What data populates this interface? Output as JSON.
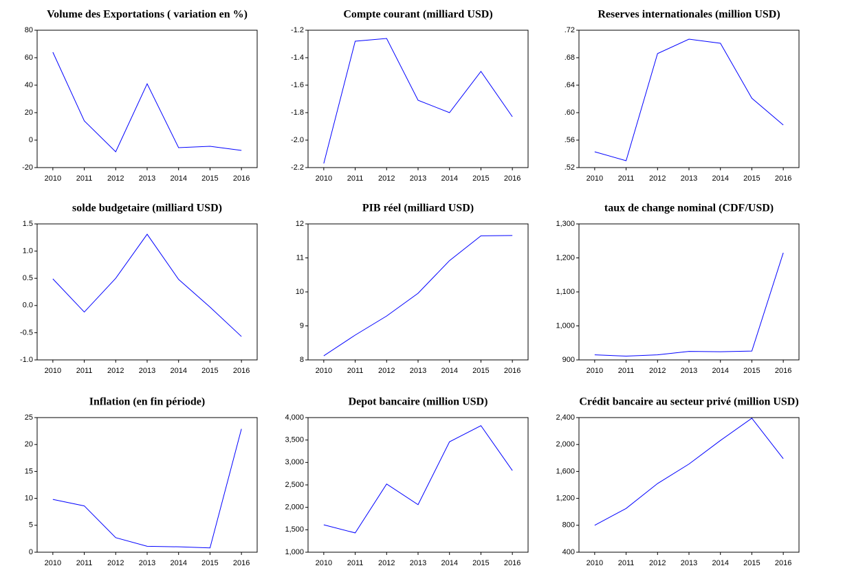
{
  "chart_data": [
    {
      "type": "line",
      "title": "Volume des Exportations ( variation en %)",
      "categories": [
        "2010",
        "2011",
        "2012",
        "2013",
        "2014",
        "2015",
        "2016"
      ],
      "values": [
        64,
        14,
        -8.5,
        41,
        -5.5,
        -4.5,
        -7.5
      ],
      "color": "#0000ff",
      "ylim": [
        -20,
        80
      ],
      "yticks": [
        -20,
        0,
        20,
        40,
        60,
        80
      ]
    },
    {
      "type": "line",
      "title": "Compte courant (milliard USD)",
      "categories": [
        "2010",
        "2011",
        "2012",
        "2013",
        "2014",
        "2015",
        "2016"
      ],
      "values": [
        -2.17,
        -1.28,
        -1.26,
        -1.71,
        -1.8,
        -1.5,
        -1.83
      ],
      "color": "#0000ff",
      "ylim": [
        -2.2,
        -1.2
      ],
      "yticks": [
        -2.2,
        {
          "value": -2,
          "label": "-2.0"
        },
        -1.8,
        -1.6,
        -1.4,
        -1.2
      ]
    },
    {
      "type": "line",
      "title": "Reserves internationales  (million USD)",
      "categories": [
        "2010",
        "2011",
        "2012",
        "2013",
        "2014",
        "2015",
        "2016"
      ],
      "values": [
        0.543,
        0.53,
        0.686,
        0.707,
        0.701,
        0.621,
        0.582
      ],
      "color": "#0000ff",
      "ylim": [
        0.52,
        0.72
      ],
      "yticks": [
        {
          "value": 0.52,
          "label": ".52"
        },
        {
          "value": 0.56,
          "label": ".56"
        },
        {
          "value": 0.6,
          "label": ".60"
        },
        {
          "value": 0.64,
          "label": ".64"
        },
        {
          "value": 0.68,
          "label": ".68"
        },
        {
          "value": 0.72,
          "label": ".72"
        }
      ]
    },
    {
      "type": "line",
      "title": "solde budgetaire  (milliard USD)",
      "categories": [
        "2010",
        "2011",
        "2012",
        "2013",
        "2014",
        "2015",
        "2016"
      ],
      "values": [
        0.49,
        -0.12,
        0.5,
        1.31,
        0.48,
        -0.03,
        -0.57
      ],
      "color": "#0000ff",
      "ylim": [
        -1,
        1.5
      ],
      "yticks": [
        {
          "value": -1,
          "label": "-1.0"
        },
        -0.5,
        {
          "value": 0,
          "label": "0.0"
        },
        0.5,
        {
          "value": 1,
          "label": "1.0"
        },
        1.5
      ]
    },
    {
      "type": "line",
      "title": "PIB réel (milliard USD)",
      "categories": [
        "2010",
        "2011",
        "2012",
        "2013",
        "2014",
        "2015",
        "2016"
      ],
      "values": [
        8.12,
        8.73,
        9.29,
        9.96,
        10.92,
        11.65,
        11.66
      ],
      "color": "#0000ff",
      "ylim": [
        8,
        12
      ],
      "yticks": [
        8,
        9,
        10,
        11,
        12
      ]
    },
    {
      "type": "line",
      "title": "taux de change nominal (CDF/USD)",
      "categories": [
        "2010",
        "2011",
        "2012",
        "2013",
        "2014",
        "2015",
        "2016"
      ],
      "values": [
        915,
        911,
        915,
        925,
        924,
        926,
        1215
      ],
      "color": "#0000ff",
      "ylim": [
        900,
        1300
      ],
      "yticks": [
        900,
        {
          "value": 1000,
          "label": "1,000"
        },
        {
          "value": 1100,
          "label": "1,100"
        },
        {
          "value": 1200,
          "label": "1,200"
        },
        {
          "value": 1300,
          "label": "1,300"
        }
      ]
    },
    {
      "type": "line",
      "title": "Inflation (en fin période)",
      "categories": [
        "2010",
        "2011",
        "2012",
        "2013",
        "2014",
        "2015",
        "2016"
      ],
      "values": [
        9.8,
        8.6,
        2.7,
        1.1,
        1.0,
        0.8,
        22.9
      ],
      "color": "#0000ff",
      "ylim": [
        0,
        25
      ],
      "yticks": [
        0,
        5,
        10,
        15,
        20,
        25
      ]
    },
    {
      "type": "line",
      "title": "Depot bancaire (million USD)",
      "categories": [
        "2010",
        "2011",
        "2012",
        "2013",
        "2014",
        "2015",
        "2016"
      ],
      "values": [
        1610,
        1430,
        2520,
        2060,
        3460,
        3820,
        2820
      ],
      "color": "#0000ff",
      "ylim": [
        1000,
        4000
      ],
      "yticks": [
        {
          "value": 1000,
          "label": "1,000"
        },
        {
          "value": 1500,
          "label": "1,500"
        },
        {
          "value": 2000,
          "label": "2,000"
        },
        {
          "value": 2500,
          "label": "2,500"
        },
        {
          "value": 3000,
          "label": "3,000"
        },
        {
          "value": 3500,
          "label": "3,500"
        },
        {
          "value": 4000,
          "label": "4,000"
        }
      ]
    },
    {
      "type": "line",
      "title": "Crédit bancaire au secteur privé (million USD)",
      "categories": [
        "2010",
        "2011",
        "2012",
        "2013",
        "2014",
        "2015",
        "2016"
      ],
      "values": [
        800,
        1050,
        1420,
        1710,
        2060,
        2390,
        1790
      ],
      "color": "#0000ff",
      "ylim": [
        400,
        2400
      ],
      "yticks": [
        400,
        800,
        {
          "value": 1200,
          "label": "1,200"
        },
        {
          "value": 1600,
          "label": "1,600"
        },
        {
          "value": 2000,
          "label": "2,000"
        },
        {
          "value": 2400,
          "label": "2,400"
        }
      ]
    }
  ]
}
